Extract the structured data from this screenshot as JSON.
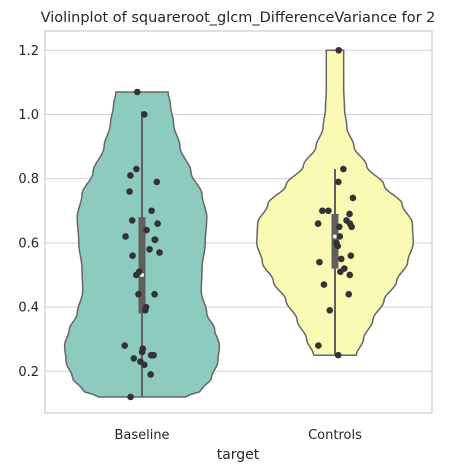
{
  "chart_data": {
    "type": "violin",
    "title": "Violinplot of squareroot_glcm_DifferenceVariance for 2",
    "xlabel": "target",
    "ylabel": "",
    "categories": [
      "Baseline",
      "Controls"
    ],
    "ylim": [
      0.07,
      1.26
    ],
    "yticks": [
      0.2,
      0.4,
      0.6,
      0.8,
      1.0,
      1.2
    ],
    "ytick_labels": [
      "0.2",
      "0.4",
      "0.6",
      "0.8",
      "1.0",
      "1.2"
    ],
    "grid": "horizontal",
    "colors": {
      "Baseline": "#8ecbbf",
      "Controls": "#fafab4",
      "outline": "#666666",
      "points": "#333333",
      "box": "#5f5f5f"
    },
    "series": [
      {
        "name": "Baseline",
        "range": [
          0.12,
          1.07
        ],
        "box": {
          "q1": 0.38,
          "median": 0.5,
          "q3": 0.68,
          "whisker_low": 0.12,
          "whisker_high": 1.01
        },
        "profile": [
          [
            0.12,
            0.55
          ],
          [
            0.14,
            0.75
          ],
          [
            0.18,
            0.88
          ],
          [
            0.23,
            0.96
          ],
          [
            0.28,
            0.98
          ],
          [
            0.33,
            0.92
          ],
          [
            0.38,
            0.82
          ],
          [
            0.45,
            0.75
          ],
          [
            0.52,
            0.76
          ],
          [
            0.6,
            0.8
          ],
          [
            0.68,
            0.82
          ],
          [
            0.75,
            0.76
          ],
          [
            0.82,
            0.62
          ],
          [
            0.9,
            0.48
          ],
          [
            0.97,
            0.4
          ],
          [
            1.03,
            0.36
          ],
          [
            1.07,
            0.33
          ]
        ],
        "points": [
          0.12,
          0.19,
          0.22,
          0.23,
          0.24,
          0.25,
          0.25,
          0.26,
          0.27,
          0.27,
          0.28,
          0.39,
          0.4,
          0.44,
          0.44,
          0.5,
          0.51,
          0.56,
          0.57,
          0.58,
          0.61,
          0.61,
          0.62,
          0.64,
          0.66,
          0.67,
          0.7,
          0.76,
          0.79,
          0.81,
          0.83,
          1.0,
          1.07
        ]
      },
      {
        "name": "Controls",
        "range": [
          0.25,
          1.2
        ],
        "box": {
          "q1": 0.52,
          "median": 0.62,
          "q3": 0.69,
          "whisker_low": 0.25,
          "whisker_high": 0.83
        },
        "profile": [
          [
            0.25,
            0.27
          ],
          [
            0.3,
            0.36
          ],
          [
            0.36,
            0.48
          ],
          [
            0.42,
            0.62
          ],
          [
            0.48,
            0.78
          ],
          [
            0.54,
            0.92
          ],
          [
            0.6,
            0.99
          ],
          [
            0.66,
            0.98
          ],
          [
            0.72,
            0.85
          ],
          [
            0.78,
            0.62
          ],
          [
            0.84,
            0.4
          ],
          [
            0.9,
            0.24
          ],
          [
            0.96,
            0.15
          ],
          [
            1.02,
            0.12
          ],
          [
            1.08,
            0.11
          ],
          [
            1.14,
            0.11
          ],
          [
            1.2,
            0.11
          ]
        ],
        "points": [
          0.25,
          0.28,
          0.39,
          0.44,
          0.47,
          0.5,
          0.51,
          0.52,
          0.54,
          0.55,
          0.56,
          0.59,
          0.6,
          0.62,
          0.65,
          0.65,
          0.66,
          0.66,
          0.67,
          0.69,
          0.7,
          0.7,
          0.74,
          0.79,
          0.83,
          1.2
        ]
      }
    ]
  }
}
